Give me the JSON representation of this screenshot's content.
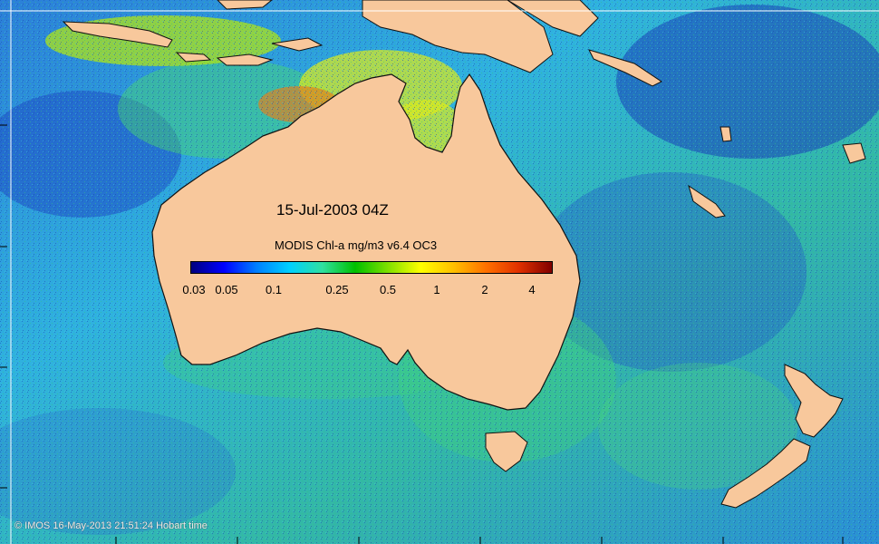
{
  "map": {
    "title": "15-Jul-2003 04Z",
    "colorbar": {
      "label": "MODIS Chl-a mg/m3 v6.4 OC3",
      "ticks": [
        "0.03",
        "0.05",
        "0.1",
        "0.25",
        "0.5",
        "1",
        "2",
        "4"
      ],
      "colors": [
        "#00007f",
        "#0000ff",
        "#0080ff",
        "#00d0ff",
        "#30e0a0",
        "#00c000",
        "#80e000",
        "#ffff00",
        "#ffc000",
        "#ff7000",
        "#e03000",
        "#800000"
      ]
    },
    "land_color": "#f8c89c",
    "credit": "© IMOS 16-May-2013 21:51:24 Hobart time",
    "regions": [
      "Australia",
      "Tasmania",
      "New Zealand",
      "New Guinea",
      "Indonesia"
    ]
  }
}
